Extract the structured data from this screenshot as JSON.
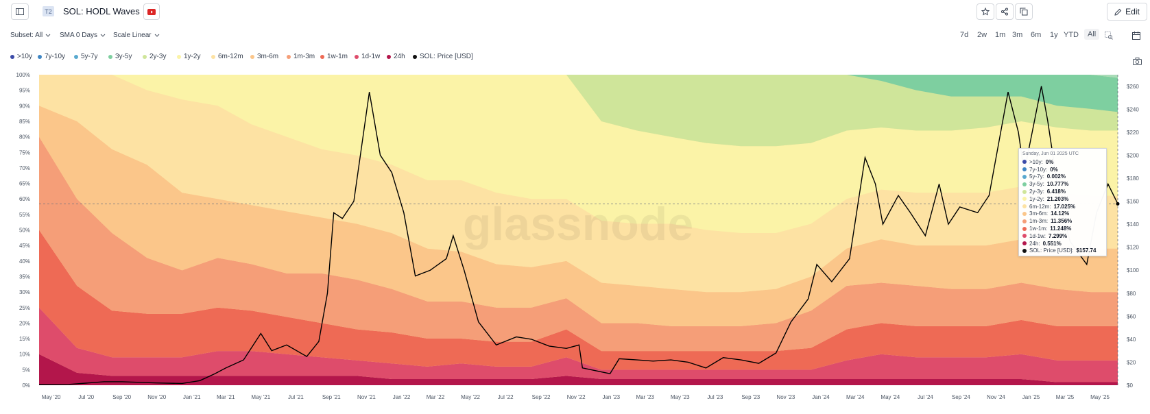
{
  "header": {
    "tier": "T2",
    "title": "SOL: HODL Waves",
    "edit_label": "Edit"
  },
  "controls": {
    "subset": "Subset: All",
    "sma": "SMA 0 Days",
    "scale": "Scale Linear"
  },
  "ranges": [
    "7d",
    "2w",
    "1m",
    "3m",
    "6m",
    "1y",
    "YTD",
    "All"
  ],
  "active_range": "All",
  "legend": [
    {
      "label": ">10y",
      "color": "#3b4ba8"
    },
    {
      "label": "7y-10y",
      "color": "#3f86c4"
    },
    {
      "label": "5y-7y",
      "color": "#59a9cf"
    },
    {
      "label": "3y-5y",
      "color": "#7ecfa0"
    },
    {
      "label": "2y-3y",
      "color": "#cfe59a"
    },
    {
      "label": "1y-2y",
      "color": "#fbf3a7"
    },
    {
      "label": "6m-12m",
      "color": "#fde2a3"
    },
    {
      "label": "3m-6m",
      "color": "#fbc68a"
    },
    {
      "label": "1m-3m",
      "color": "#f59e78"
    },
    {
      "label": "1w-1m",
      "color": "#ee6a55"
    },
    {
      "label": "1d-1w",
      "color": "#de4c6b"
    },
    {
      "label": "24h",
      "color": "#b3164b"
    },
    {
      "label": "SOL: Price [USD]",
      "color": "#111111"
    }
  ],
  "watermark": "glassnode",
  "tooltip": {
    "date": "Sunday, Jun 01 2025 UTC",
    "rows": [
      {
        "label": ">10y",
        "value": "0%",
        "color": "#3b4ba8"
      },
      {
        "label": "7y-10y",
        "value": "0%",
        "color": "#3f86c4"
      },
      {
        "label": "5y-7y",
        "value": "0.002%",
        "color": "#59a9cf"
      },
      {
        "label": "3y-5y",
        "value": "10.777%",
        "color": "#7ecfa0"
      },
      {
        "label": "2y-3y",
        "value": "6.418%",
        "color": "#cfe59a"
      },
      {
        "label": "1y-2y",
        "value": "21.203%",
        "color": "#fbf3a7"
      },
      {
        "label": "6m-12m",
        "value": "17.025%",
        "color": "#fde2a3"
      },
      {
        "label": "3m-6m",
        "value": "14.12%",
        "color": "#fbc68a"
      },
      {
        "label": "1m-3m",
        "value": "11.356%",
        "color": "#f59e78"
      },
      {
        "label": "1w-1m",
        "value": "11.248%",
        "color": "#ee6a55"
      },
      {
        "label": "1d-1w",
        "value": "7.299%",
        "color": "#de4c6b"
      },
      {
        "label": "24h",
        "value": "0.551%",
        "color": "#b3164b"
      },
      {
        "label": "SOL: Price [USD]",
        "value": "$157.74",
        "color": "#111111"
      }
    ]
  },
  "chart_data": {
    "type": "area",
    "title": "SOL: HODL Waves",
    "x_ticks": [
      "May '20",
      "Jul '20",
      "Sep '20",
      "Nov '20",
      "Jan '21",
      "Mar '21",
      "May '21",
      "Jul '21",
      "Sep '21",
      "Nov '21",
      "Jan '22",
      "Mar '22",
      "May '22",
      "Jul '22",
      "Sep '22",
      "Nov '22",
      "Jan '23",
      "Mar '23",
      "May '23",
      "Jul '23",
      "Sep '23",
      "Nov '23",
      "Jan '24",
      "Mar '24",
      "May '24",
      "Jul '24",
      "Sep '24",
      "Nov '24",
      "Jan '25",
      "Mar '25",
      "May '25"
    ],
    "x": [
      "2020-04",
      "2020-06",
      "2020-08",
      "2020-10",
      "2020-12",
      "2021-02",
      "2021-04",
      "2021-06",
      "2021-08",
      "2021-10",
      "2021-12",
      "2022-02",
      "2022-04",
      "2022-06",
      "2022-08",
      "2022-10",
      "2022-12",
      "2023-02",
      "2023-04",
      "2023-06",
      "2023-08",
      "2023-10",
      "2023-12",
      "2024-02",
      "2024-04",
      "2024-06",
      "2024-08",
      "2024-10",
      "2024-12",
      "2025-02",
      "2025-04",
      "2025-06"
    ],
    "left_axis": {
      "ticks": [
        "0%",
        "5%",
        "10%",
        "15%",
        "20%",
        "25%",
        "30%",
        "35%",
        "40%",
        "45%",
        "50%",
        "55%",
        "60%",
        "65%",
        "70%",
        "75%",
        "80%",
        "85%",
        "90%",
        "95%",
        "100%"
      ],
      "ylim": [
        0,
        100
      ]
    },
    "right_axis": {
      "ticks": [
        "$0",
        "$20",
        "$40",
        "$60",
        "$80",
        "$100",
        "$120",
        "$140",
        "$160",
        "$180",
        "$200",
        "$220",
        "$240",
        "$260"
      ],
      "ylim": [
        0,
        270
      ]
    },
    "series": [
      {
        "name": "24h",
        "values": [
          10,
          4,
          3,
          3,
          3,
          3,
          3,
          3,
          3,
          3,
          2,
          2,
          2,
          2,
          2,
          3,
          2,
          2,
          2,
          2,
          2,
          2,
          2,
          2,
          2,
          2,
          2,
          2,
          2,
          1,
          1,
          1
        ]
      },
      {
        "name": "1d-1w",
        "values": [
          15,
          8,
          6,
          6,
          6,
          8,
          8,
          7,
          6,
          5,
          5,
          4,
          5,
          4,
          4,
          6,
          3,
          3,
          3,
          3,
          3,
          3,
          3,
          6,
          8,
          7,
          7,
          7,
          8,
          7,
          7,
          7
        ]
      },
      {
        "name": "1w-1m",
        "values": [
          25,
          20,
          15,
          14,
          14,
          14,
          13,
          12,
          11,
          10,
          10,
          9,
          8,
          8,
          8,
          9,
          6,
          6,
          6,
          6,
          6,
          6,
          7,
          10,
          10,
          10,
          10,
          10,
          11,
          11,
          11,
          11
        ]
      },
      {
        "name": "1m-3m",
        "values": [
          30,
          28,
          25,
          18,
          14,
          16,
          15,
          14,
          16,
          16,
          14,
          12,
          12,
          11,
          11,
          10,
          9,
          9,
          8,
          8,
          8,
          9,
          12,
          14,
          13,
          13,
          12,
          12,
          12,
          12,
          11,
          11
        ]
      },
      {
        "name": "3m-6m",
        "values": [
          10,
          25,
          27,
          30,
          25,
          19,
          19,
          20,
          18,
          18,
          18,
          17,
          16,
          14,
          13,
          12,
          13,
          12,
          12,
          11,
          11,
          11,
          11,
          12,
          14,
          13,
          14,
          14,
          14,
          14,
          14,
          14
        ]
      },
      {
        "name": "6m-12m",
        "values": [
          10,
          15,
          24,
          24,
          30,
          30,
          26,
          24,
          22,
          22,
          22,
          22,
          23,
          23,
          22,
          20,
          20,
          20,
          21,
          20,
          19,
          18,
          17,
          16,
          16,
          17,
          17,
          17,
          17,
          17,
          17,
          17
        ]
      },
      {
        "name": "1y-2y",
        "values": [
          0,
          0,
          0,
          5,
          8,
          10,
          16,
          20,
          24,
          26,
          29,
          34,
          34,
          38,
          40,
          40,
          32,
          30,
          28,
          28,
          28,
          28,
          26,
          22,
          20,
          20,
          20,
          21,
          21,
          21,
          21,
          21
        ]
      },
      {
        "name": "2y-3y",
        "values": [
          0,
          0,
          0,
          0,
          0,
          0,
          0,
          0,
          0,
          0,
          0,
          0,
          0,
          0,
          0,
          0,
          15,
          18,
          20,
          22,
          23,
          23,
          22,
          18,
          15,
          13,
          11,
          10,
          8,
          7,
          7,
          6
        ]
      },
      {
        "name": "3y-5y",
        "values": [
          0,
          0,
          0,
          0,
          0,
          0,
          0,
          0,
          0,
          0,
          0,
          0,
          0,
          0,
          0,
          0,
          0,
          0,
          0,
          0,
          0,
          0,
          0,
          0,
          2,
          5,
          7,
          7,
          7,
          10,
          11,
          11
        ]
      }
    ],
    "price": {
      "name": "SOL: Price [USD]",
      "x": [
        "2020-04-10",
        "2020-06-01",
        "2020-08-01",
        "2020-09-01",
        "2020-11-01",
        "2020-12-15",
        "2021-01-15",
        "2021-02-10",
        "2021-03-01",
        "2021-04-01",
        "2021-05-01",
        "2021-05-20",
        "2021-06-15",
        "2021-07-20",
        "2021-08-10",
        "2021-08-25",
        "2021-09-05",
        "2021-09-20",
        "2021-10-10",
        "2021-11-06",
        "2021-11-25",
        "2021-12-15",
        "2022-01-05",
        "2022-01-25",
        "2022-02-20",
        "2022-03-20",
        "2022-04-01",
        "2022-04-20",
        "2022-05-15",
        "2022-06-15",
        "2022-07-20",
        "2022-08-15",
        "2022-09-15",
        "2022-10-15",
        "2022-11-06",
        "2022-11-12",
        "2022-12-30",
        "2023-01-15",
        "2023-02-15",
        "2023-03-15",
        "2023-04-15",
        "2023-05-15",
        "2023-06-15",
        "2023-07-15",
        "2023-08-15",
        "2023-09-15",
        "2023-10-15",
        "2023-11-10",
        "2023-12-10",
        "2023-12-25",
        "2024-01-20",
        "2024-02-20",
        "2024-03-18",
        "2024-04-05",
        "2024-04-18",
        "2024-05-15",
        "2024-06-05",
        "2024-07-01",
        "2024-07-25",
        "2024-08-10",
        "2024-08-30",
        "2024-09-30",
        "2024-10-20",
        "2024-11-22",
        "2024-12-10",
        "2024-12-20",
        "2025-01-19",
        "2025-01-30",
        "2025-02-20",
        "2025-03-10",
        "2025-04-08",
        "2025-04-25",
        "2025-05-15",
        "2025-06-01"
      ],
      "values": [
        0.6,
        0.7,
        3,
        3,
        2,
        1.5,
        4,
        10,
        15,
        22,
        45,
        30,
        35,
        25,
        38,
        80,
        150,
        145,
        160,
        255,
        200,
        185,
        150,
        95,
        100,
        110,
        130,
        100,
        55,
        35,
        42,
        40,
        34,
        32,
        35,
        15,
        10,
        23,
        22,
        21,
        22,
        20,
        15,
        24,
        22,
        19,
        28,
        55,
        75,
        105,
        90,
        110,
        198,
        175,
        140,
        165,
        150,
        130,
        175,
        140,
        155,
        150,
        165,
        255,
        220,
        185,
        260,
        230,
        160,
        125,
        105,
        150,
        175,
        157.74
      ]
    },
    "crosshair": {
      "date": "2025-06-01",
      "price": 157.74
    }
  }
}
